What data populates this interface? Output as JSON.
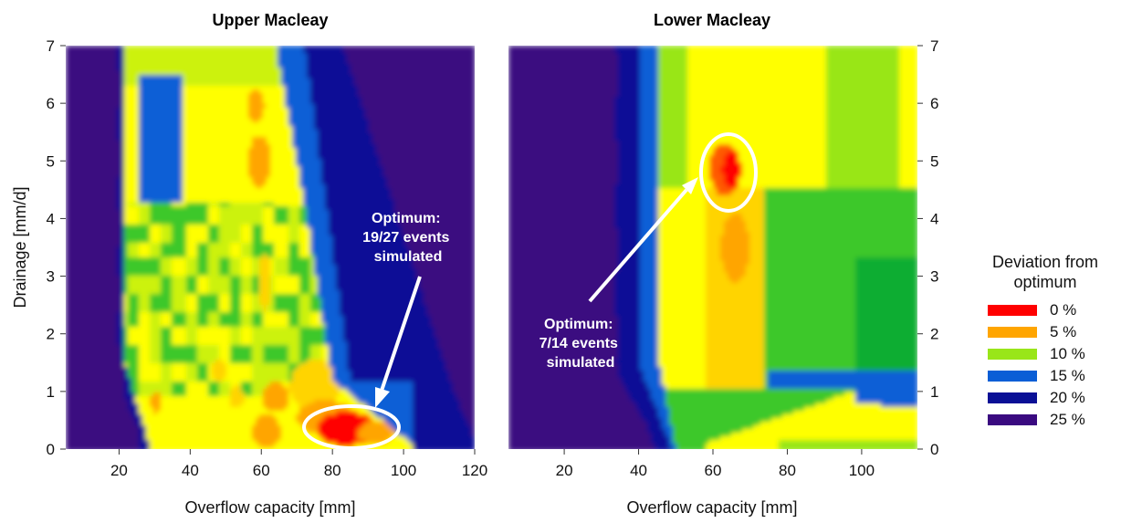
{
  "chart_data": [
    {
      "type": "heatmap",
      "title": "Upper Macleay",
      "xlabel": "Overflow capacity [mm]",
      "ylabel": "Drainage [mm/d]",
      "xlim": [
        5,
        120
      ],
      "ylim": [
        0,
        7
      ],
      "xticks": [
        "20",
        "40",
        "60",
        "80",
        "100",
        "120"
      ],
      "yticks": [
        "0",
        "1",
        "2",
        "3",
        "4",
        "5",
        "6",
        "7"
      ],
      "optimum": {
        "x": 84,
        "y": 0.35
      },
      "annotation": {
        "lines": [
          "Optimum:",
          "19/27 events",
          "simulated"
        ]
      }
    },
    {
      "type": "heatmap",
      "title": "Lower Macleay",
      "xlabel": "Overflow capacity [mm]",
      "ylabel": "",
      "xlim": [
        5,
        115
      ],
      "ylim": [
        0,
        7
      ],
      "xticks": [
        "20",
        "40",
        "60",
        "80",
        "100"
      ],
      "yticks": [
        "0",
        "1",
        "2",
        "3",
        "4",
        "5",
        "6",
        "7"
      ],
      "optimum": {
        "x": 65,
        "y": 4.85
      },
      "annotation": {
        "lines": [
          "Optimum:",
          "7/14 events",
          "simulated"
        ]
      }
    }
  ],
  "legend": {
    "title": [
      "Deviation from",
      "optimum"
    ],
    "items": [
      {
        "label": "0 %",
        "color": "#ff0000"
      },
      {
        "label": "5 %",
        "color": "#ffa500"
      },
      {
        "label": "10 %",
        "color": "#99e619"
      },
      {
        "label": "15 %",
        "color": "#0a5ed6"
      },
      {
        "label": "20 %",
        "color": "#0a1096"
      },
      {
        "label": "25 %",
        "color": "#3a0a80"
      }
    ]
  },
  "colors": {
    "scale": [
      "#ff0000",
      "#ff5a00",
      "#ffa500",
      "#ffd400",
      "#ffff00",
      "#ccf20a",
      "#99e619",
      "#3cc82a",
      "#11ad31",
      "#0a5ed6",
      "#0a1096",
      "#3a0a80"
    ],
    "annotation": "#ffffff"
  }
}
